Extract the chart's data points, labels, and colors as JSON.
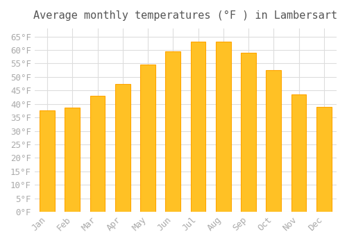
{
  "title": "Average monthly temperatures (°F ) in Lambersart",
  "months": [
    "Jan",
    "Feb",
    "Mar",
    "Apr",
    "May",
    "Jun",
    "Jul",
    "Aug",
    "Sep",
    "Oct",
    "Nov",
    "Dec"
  ],
  "values": [
    37.5,
    38.5,
    43.0,
    47.5,
    54.5,
    59.5,
    63.0,
    63.0,
    59.0,
    52.5,
    43.5,
    39.0
  ],
  "bar_color_face": "#FFC125",
  "bar_color_edge": "#FFA500",
  "background_color": "#FFFFFF",
  "plot_bg_color": "#FFFFFF",
  "grid_color": "#DDDDDD",
  "ylim": [
    0,
    68
  ],
  "yticks": [
    0,
    5,
    10,
    15,
    20,
    25,
    30,
    35,
    40,
    45,
    50,
    55,
    60,
    65
  ],
  "title_fontsize": 11,
  "tick_fontsize": 9
}
